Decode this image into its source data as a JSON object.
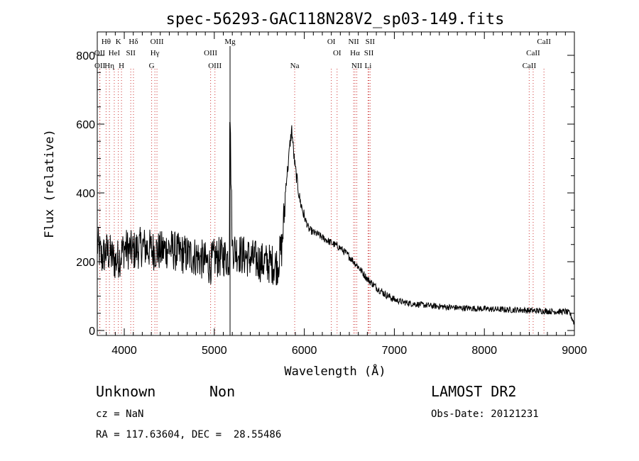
{
  "chart_data": {
    "type": "line",
    "title": "spec-56293-GAC118N28V2_sp03-149.fits",
    "xlabel": "Wavelength (Å)",
    "ylabel": "Flux (relative)",
    "xlim": [
      3700,
      9000
    ],
    "ylim": [
      0,
      850
    ],
    "x_ticks": [
      4000,
      5000,
      6000,
      7000,
      8000,
      9000
    ],
    "y_ticks": [
      0,
      200,
      400,
      600,
      800
    ],
    "grid": false,
    "series": [
      {
        "x": [
          3700,
          3750,
          3800,
          3850,
          3900,
          3950,
          4000,
          4100,
          4200,
          4300,
          4400,
          4500,
          4600,
          4700,
          4800,
          4900,
          4950,
          5000,
          5100,
          5167,
          5175,
          5200,
          5300,
          5400,
          5500,
          5600,
          5700,
          5750,
          5780,
          5800,
          5820,
          5840,
          5860,
          5870,
          5880,
          5900,
          5950,
          6000,
          6050,
          6100,
          6150,
          6200,
          6300,
          6400,
          6500,
          6600,
          6700,
          6800,
          6900,
          7000,
          7100,
          7200,
          7300,
          7400,
          7500,
          7600,
          7700,
          7800,
          7900,
          8000,
          8100,
          8200,
          8300,
          8400,
          8500,
          8600,
          8700,
          8800,
          8900,
          8950,
          9000
        ],
        "y": [
          250,
          210,
          230,
          220,
          200,
          215,
          240,
          230,
          245,
          235,
          230,
          240,
          225,
          220,
          215,
          200,
          190,
          210,
          215,
          210,
          605,
          240,
          220,
          210,
          200,
          195,
          190,
          240,
          350,
          440,
          480,
          540,
          585,
          555,
          520,
          470,
          380,
          330,
          295,
          285,
          280,
          270,
          255,
          240,
          215,
          185,
          150,
          125,
          105,
          90,
          82,
          78,
          75,
          72,
          70,
          68,
          66,
          65,
          64,
          63,
          62,
          61,
          60,
          60,
          58,
          57,
          56,
          55,
          55,
          50,
          20
        ]
      }
    ],
    "line_markers": [
      {
        "label": "Hθ",
        "x": 3798,
        "row": 1
      },
      {
        "label": "K",
        "x": 3934,
        "row": 1
      },
      {
        "label": "Hδ",
        "x": 4102,
        "row": 1
      },
      {
        "label": "OIII",
        "x": 4363,
        "row": 1
      },
      {
        "label": "Mg",
        "x": 5175,
        "row": 1
      },
      {
        "label": "OI",
        "x": 6300,
        "row": 1
      },
      {
        "label": "NII",
        "x": 6548,
        "row": 1
      },
      {
        "label": "SII",
        "x": 6731,
        "row": 1
      },
      {
        "label": "CaII",
        "x": 8662,
        "row": 1
      },
      {
        "label": "OII",
        "x": 3727,
        "row": 2
      },
      {
        "label": "HeI",
        "x": 3889,
        "row": 2
      },
      {
        "label": "SII",
        "x": 4072,
        "row": 2
      },
      {
        "label": "Hγ",
        "x": 4340,
        "row": 2
      },
      {
        "label": "OIII",
        "x": 4959,
        "row": 2
      },
      {
        "label": "OI",
        "x": 6364,
        "row": 2
      },
      {
        "label": "Hα",
        "x": 6563,
        "row": 2
      },
      {
        "label": "SII",
        "x": 6717,
        "row": 2
      },
      {
        "label": "CaII",
        "x": 8542,
        "row": 2
      },
      {
        "label": "OII",
        "x": 3729,
        "row": 3
      },
      {
        "label": "Hη",
        "x": 3835,
        "row": 3
      },
      {
        "label": "H",
        "x": 3969,
        "row": 3
      },
      {
        "label": "G",
        "x": 4304,
        "row": 3
      },
      {
        "label": "OIII",
        "x": 5007,
        "row": 3
      },
      {
        "label": "Na",
        "x": 5893,
        "row": 3
      },
      {
        "label": "NII",
        "x": 6583,
        "row": 3
      },
      {
        "label": "Li",
        "x": 6708,
        "row": 3
      },
      {
        "label": "CaII",
        "x": 8498,
        "row": 3
      }
    ]
  },
  "info": {
    "class": "Unknown",
    "subclass": "Non",
    "cz": "cz = NaN",
    "coords": "RA = 117.63604, DEC =  28.55486",
    "survey": "LAMOST DR2",
    "obs_date": "Obs-Date: 20121231"
  }
}
